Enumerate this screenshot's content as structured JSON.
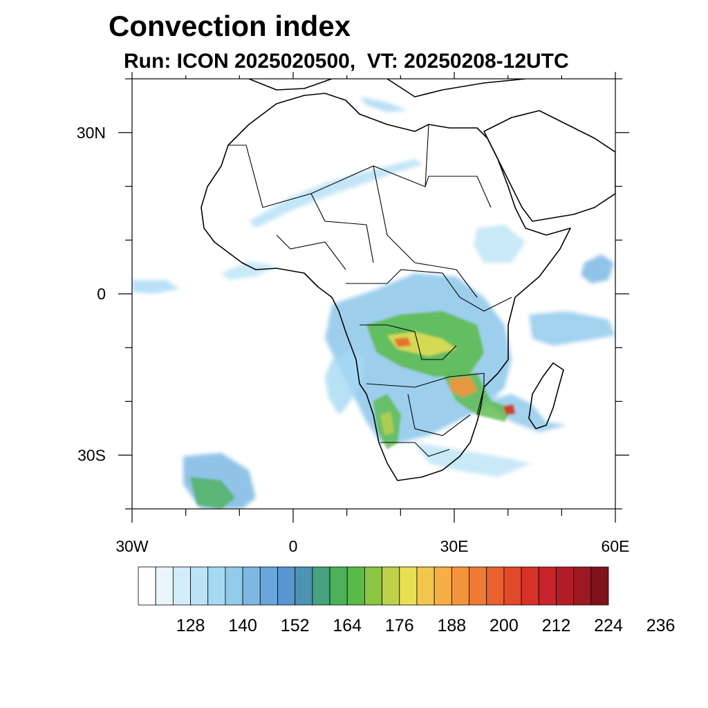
{
  "title": "Convection index",
  "subtitle": "Run: ICON 2025020500,  VT: 20250208-12UTC",
  "map": {
    "extent": {
      "lon_min": -30,
      "lon_max": 60,
      "lat_min": -40,
      "lat_max": 40
    },
    "lon_ticks": [
      {
        "value": -30,
        "label": "30W"
      },
      {
        "value": 0,
        "label": "0"
      },
      {
        "value": 30,
        "label": "30E"
      },
      {
        "value": 60,
        "label": "60E"
      }
    ],
    "lat_ticks": [
      {
        "value": 30,
        "label": "30N"
      },
      {
        "value": 0,
        "label": "0"
      },
      {
        "value": -30,
        "label": "30S"
      }
    ],
    "region": "Africa"
  },
  "colorbar": {
    "labels": [
      "128",
      "140",
      "152",
      "164",
      "176",
      "188",
      "200",
      "212",
      "224",
      "236"
    ],
    "colors": [
      "#ffffff",
      "#eaf5fc",
      "#d3ecf9",
      "#bce3f6",
      "#a6daf4",
      "#92caeb",
      "#7db8e3",
      "#6aa6da",
      "#5896cf",
      "#4c93b5",
      "#47a27d",
      "#4cb15a",
      "#5aba48",
      "#8cc542",
      "#bdd14b",
      "#e9df52",
      "#f5c64e",
      "#f6ae45",
      "#f3943b",
      "#ee7a33",
      "#e9612c",
      "#e14929",
      "#d83228",
      "#c8242b",
      "#b31d27",
      "#9c1822",
      "#82121a"
    ]
  }
}
